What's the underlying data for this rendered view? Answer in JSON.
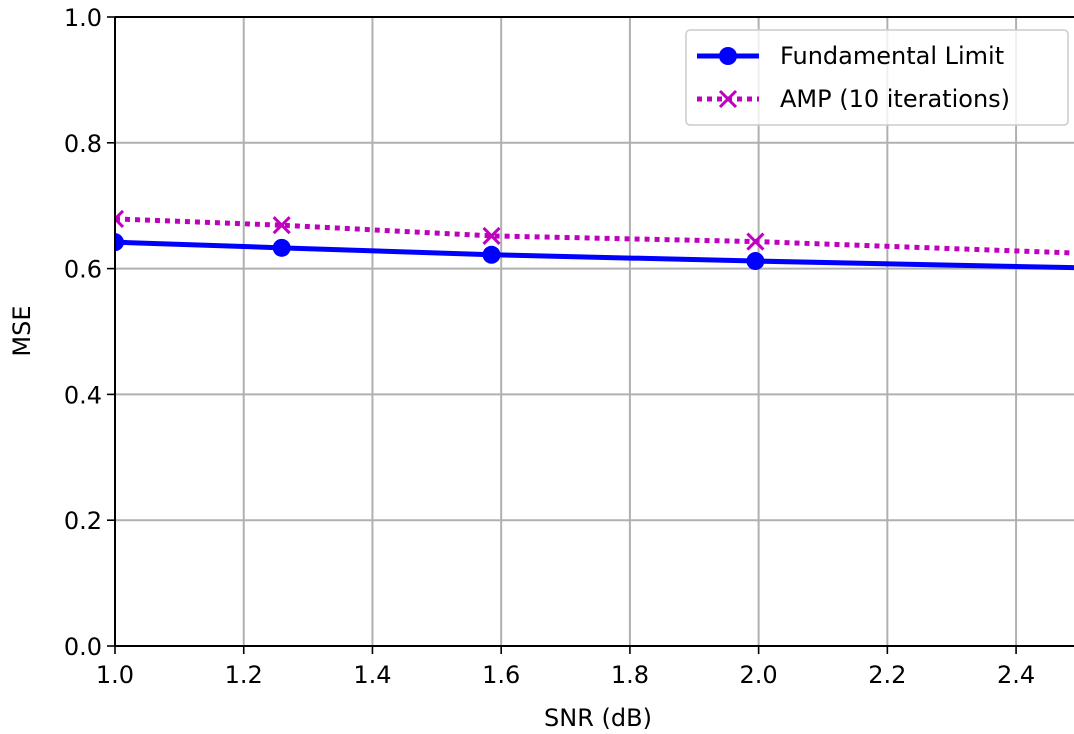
{
  "chart_data": {
    "type": "line",
    "title": "",
    "xlabel": "SNR (dB)",
    "ylabel": "MSE",
    "xlim": [
      1.0,
      2.49
    ],
    "ylim": [
      0.0,
      1.0
    ],
    "xticks": [
      1.0,
      1.2,
      1.4,
      1.6,
      1.8,
      2.0,
      2.2,
      2.4
    ],
    "xtick_labels": [
      "1.0",
      "1.2",
      "1.4",
      "1.6",
      "1.8",
      "2.0",
      "2.2",
      "2.4"
    ],
    "yticks": [
      0.0,
      0.2,
      0.4,
      0.6,
      0.8,
      1.0
    ],
    "ytick_labels": [
      "0.0",
      "0.2",
      "0.4",
      "0.6",
      "0.8",
      "1.0"
    ],
    "grid": true,
    "legend_position": "top-right",
    "series": [
      {
        "name": "Fundamental Limit",
        "color": "#0000ff",
        "line_style": "solid",
        "marker": "circle",
        "x": [
          1.0,
          1.259,
          1.585,
          1.995,
          2.512
        ],
        "y": [
          0.642,
          0.633,
          0.622,
          0.612,
          0.601
        ]
      },
      {
        "name": "AMP (10 iterations)",
        "color": "#bf00bf",
        "line_style": "dotted",
        "marker": "x",
        "x": [
          1.0,
          1.259,
          1.585,
          1.995,
          2.512
        ],
        "y": [
          0.679,
          0.669,
          0.652,
          0.643,
          0.624
        ]
      }
    ]
  }
}
